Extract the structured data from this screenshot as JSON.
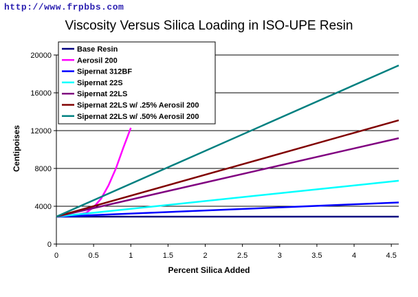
{
  "watermark": "http://www.frpbbs.com",
  "chart_data": {
    "type": "line",
    "title": "Viscosity Versus Silica Loading in ISO-UPE Resin",
    "xlabel": "Percent Silica Added",
    "ylabel": "Centipoises",
    "xlim": [
      0,
      4.6
    ],
    "ylim": [
      0,
      20000
    ],
    "xticks": [
      "0",
      "0.5",
      "1",
      "1.5",
      "2",
      "2.5",
      "3",
      "3.5",
      "4",
      "4.5"
    ],
    "yticks": [
      "0",
      "4000",
      "8000",
      "12000",
      "16000",
      "20000"
    ],
    "grid": "horizontal",
    "legend_position": "top-left",
    "series": [
      {
        "name": "Base Resin",
        "color": "#000080",
        "x": [
          0,
          4.6
        ],
        "y": [
          2900,
          2900
        ]
      },
      {
        "name": "Aerosil 200",
        "color": "#ff00ff",
        "x": [
          0,
          0.2,
          0.4,
          0.5,
          0.6,
          0.7,
          0.8,
          0.9,
          1.0
        ],
        "y": [
          2900,
          3000,
          3300,
          3900,
          4800,
          6200,
          8000,
          10200,
          12300
        ]
      },
      {
        "name": "Sipernat 312BF",
        "color": "#0000ff",
        "x": [
          0,
          4.6
        ],
        "y": [
          2900,
          4400
        ]
      },
      {
        "name": "Sipernat 22S",
        "color": "#00ffff",
        "x": [
          0,
          4.6
        ],
        "y": [
          2900,
          6700
        ]
      },
      {
        "name": "Sipernat 22LS",
        "color": "#800080",
        "x": [
          0,
          4.6
        ],
        "y": [
          2900,
          11200
        ]
      },
      {
        "name": "Sipernat 22LS w/ .25% Aerosil 200",
        "color": "#800000",
        "x": [
          0,
          4.6
        ],
        "y": [
          2900,
          13100
        ]
      },
      {
        "name": "Sipernat 22LS w/ .50% Aerosil 200",
        "color": "#008080",
        "x": [
          0,
          4.6
        ],
        "y": [
          2900,
          18900
        ]
      }
    ]
  }
}
